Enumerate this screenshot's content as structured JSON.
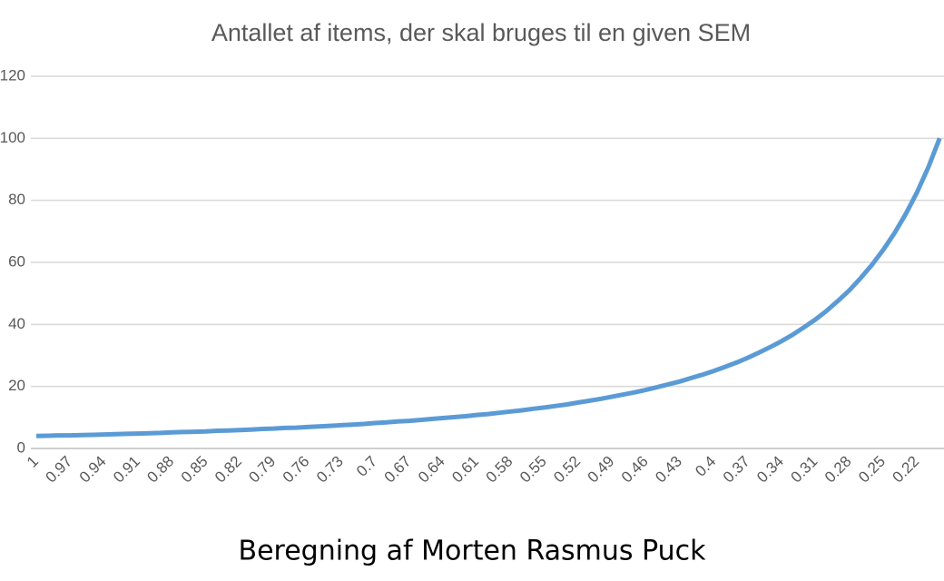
{
  "chart_data": {
    "type": "line",
    "title": "Antallet af items, der skal bruges til en given SEM",
    "caption": "Beregning af Morten Rasmus Puck",
    "categories": [
      "1",
      null,
      null,
      "0.97",
      null,
      null,
      "0.94",
      null,
      null,
      "0.91",
      null,
      null,
      "0.88",
      null,
      null,
      "0.85",
      null,
      null,
      "0.82",
      null,
      null,
      "0.79",
      null,
      null,
      "0.76",
      null,
      null,
      "0.73",
      null,
      null,
      "0.7",
      null,
      null,
      "0.67",
      null,
      null,
      "0.64",
      null,
      null,
      "0.61",
      null,
      null,
      "0.58",
      null,
      null,
      "0.55",
      null,
      null,
      "0.52",
      null,
      null,
      "0.49",
      null,
      null,
      "0.46",
      null,
      null,
      "0.43",
      null,
      null,
      "0.4",
      null,
      null,
      "0.37",
      null,
      null,
      "0.34",
      null,
      null,
      "0.31",
      null,
      null,
      "0.28",
      null,
      null,
      "0.25",
      null,
      null,
      "0.22",
      null,
      null
    ],
    "values": [
      4.0,
      4.1,
      4.2,
      4.2,
      4.3,
      4.4,
      4.5,
      4.6,
      4.7,
      4.8,
      4.9,
      5.0,
      5.2,
      5.3,
      5.4,
      5.5,
      5.7,
      5.8,
      5.9,
      6.1,
      6.3,
      6.4,
      6.6,
      6.7,
      6.9,
      7.1,
      7.3,
      7.5,
      7.7,
      7.9,
      8.2,
      8.4,
      8.7,
      8.9,
      9.2,
      9.5,
      9.8,
      10.1,
      10.4,
      10.8,
      11.1,
      11.5,
      11.9,
      12.3,
      12.8,
      13.2,
      13.7,
      14.2,
      14.8,
      15.4,
      16.0,
      16.7,
      17.4,
      18.1,
      18.9,
      19.8,
      20.7,
      21.6,
      22.7,
      23.8,
      25.0,
      26.3,
      27.7,
      29.2,
      30.9,
      32.7,
      34.6,
      36.7,
      39.1,
      41.6,
      44.4,
      47.6,
      51.0,
      54.9,
      59.2,
      64.0,
      69.4,
      75.6,
      82.6,
      90.7,
      100.0
    ],
    "color": "#5b9bd5",
    "ylim": [
      0,
      120
    ],
    "yticks": [
      0,
      20,
      40,
      60,
      80,
      100,
      120
    ],
    "grid": true
  }
}
